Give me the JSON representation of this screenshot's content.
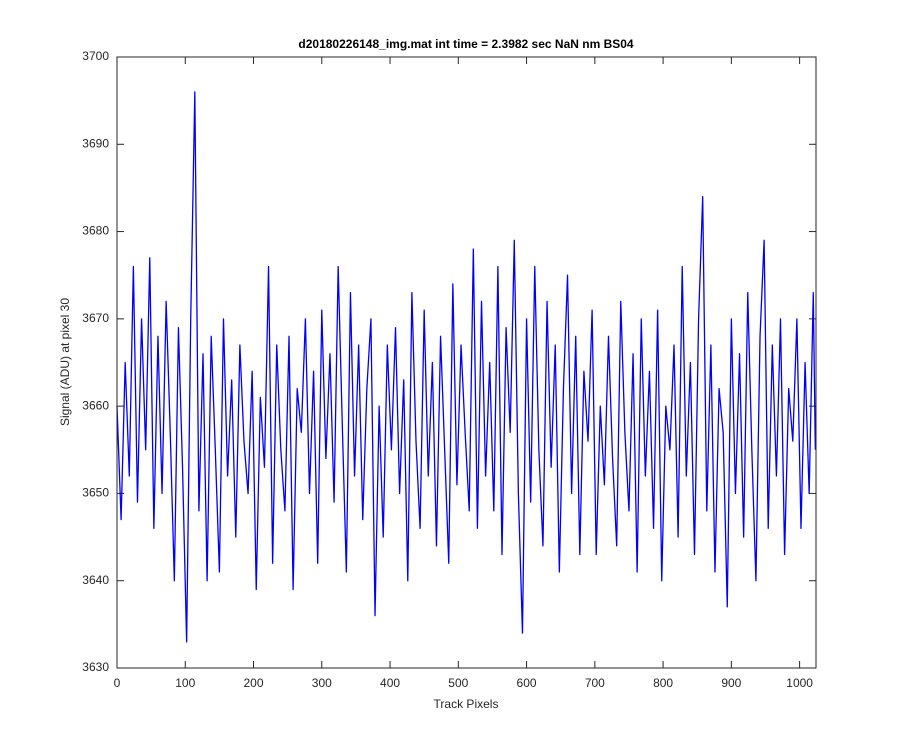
{
  "chart_data": {
    "type": "line",
    "title": "d20180226148_img.mat int time = 2.3982 sec  NaN nm BS04",
    "xlabel": "Track Pixels",
    "ylabel": "Signal (ADU) at pixel 30",
    "x": [
      0,
      6,
      12,
      18,
      24,
      30,
      36,
      42,
      48,
      54,
      60,
      66,
      72,
      78,
      84,
      90,
      96,
      102,
      108,
      114,
      120,
      126,
      132,
      138,
      144,
      150,
      156,
      162,
      168,
      174,
      180,
      186,
      192,
      198,
      204,
      210,
      216,
      222,
      228,
      234,
      240,
      246,
      252,
      258,
      264,
      270,
      276,
      282,
      288,
      294,
      300,
      306,
      312,
      318,
      324,
      330,
      336,
      342,
      348,
      354,
      360,
      366,
      372,
      378,
      384,
      390,
      396,
      402,
      408,
      414,
      420,
      426,
      432,
      438,
      444,
      450,
      456,
      462,
      468,
      474,
      480,
      486,
      492,
      498,
      504,
      510,
      516,
      522,
      528,
      534,
      540,
      546,
      552,
      558,
      564,
      570,
      576,
      582,
      588,
      594,
      600,
      606,
      612,
      618,
      624,
      630,
      636,
      642,
      648,
      654,
      660,
      666,
      672,
      678,
      684,
      690,
      696,
      702,
      708,
      714,
      720,
      726,
      732,
      738,
      744,
      750,
      756,
      762,
      768,
      774,
      780,
      786,
      792,
      798,
      804,
      810,
      816,
      822,
      828,
      834,
      840,
      846,
      852,
      858,
      864,
      870,
      876,
      882,
      888,
      894,
      900,
      906,
      912,
      918,
      924,
      930,
      936,
      942,
      948,
      954,
      960,
      966,
      972,
      978,
      984,
      990,
      996,
      1002,
      1008,
      1014,
      1020,
      1023
    ],
    "series": [
      {
        "color": "#0000ff",
        "values": [
          3660,
          3647,
          3665,
          3652,
          3676,
          3649,
          3670,
          3655,
          3677,
          3646,
          3668,
          3650,
          3672,
          3657,
          3640,
          3669,
          3653,
          3633,
          3670,
          3696,
          3648,
          3666,
          3640,
          3668,
          3655,
          3641,
          3670,
          3652,
          3663,
          3645,
          3667,
          3656,
          3650,
          3664,
          3639,
          3661,
          3653,
          3676,
          3642,
          3667,
          3655,
          3648,
          3668,
          3639,
          3662,
          3657,
          3670,
          3650,
          3664,
          3642,
          3671,
          3654,
          3666,
          3649,
          3676,
          3658,
          3641,
          3673,
          3652,
          3667,
          3647,
          3662,
          3670,
          3636,
          3660,
          3645,
          3667,
          3655,
          3669,
          3650,
          3663,
          3640,
          3673,
          3656,
          3646,
          3671,
          3652,
          3665,
          3644,
          3668,
          3655,
          3642,
          3674,
          3651,
          3667,
          3657,
          3648,
          3678,
          3646,
          3672,
          3652,
          3665,
          3648,
          3676,
          3643,
          3669,
          3657,
          3679,
          3650,
          3634,
          3670,
          3649,
          3676,
          3655,
          3644,
          3672,
          3653,
          3667,
          3641,
          3662,
          3675,
          3650,
          3668,
          3643,
          3664,
          3656,
          3671,
          3643,
          3660,
          3651,
          3668,
          3654,
          3644,
          3672,
          3657,
          3648,
          3666,
          3641,
          3670,
          3652,
          3664,
          3646,
          3671,
          3640,
          3660,
          3655,
          3667,
          3645,
          3676,
          3652,
          3665,
          3643,
          3670,
          3684,
          3648,
          3667,
          3641,
          3662,
          3657,
          3637,
          3670,
          3650,
          3666,
          3645,
          3673,
          3655,
          3640,
          3668,
          3679,
          3646,
          3667,
          3652,
          3670,
          3643,
          3662,
          3656,
          3670,
          3646,
          3665,
          3650,
          3673,
          3655
        ]
      }
    ],
    "xlim": [
      0,
      1024
    ],
    "xticks": [
      0,
      100,
      200,
      300,
      400,
      500,
      600,
      700,
      800,
      900,
      1000
    ],
    "ylim": [
      3630,
      3700
    ],
    "yticks": [
      3630,
      3640,
      3650,
      3660,
      3670,
      3680,
      3690,
      3700
    ],
    "grid": false
  }
}
